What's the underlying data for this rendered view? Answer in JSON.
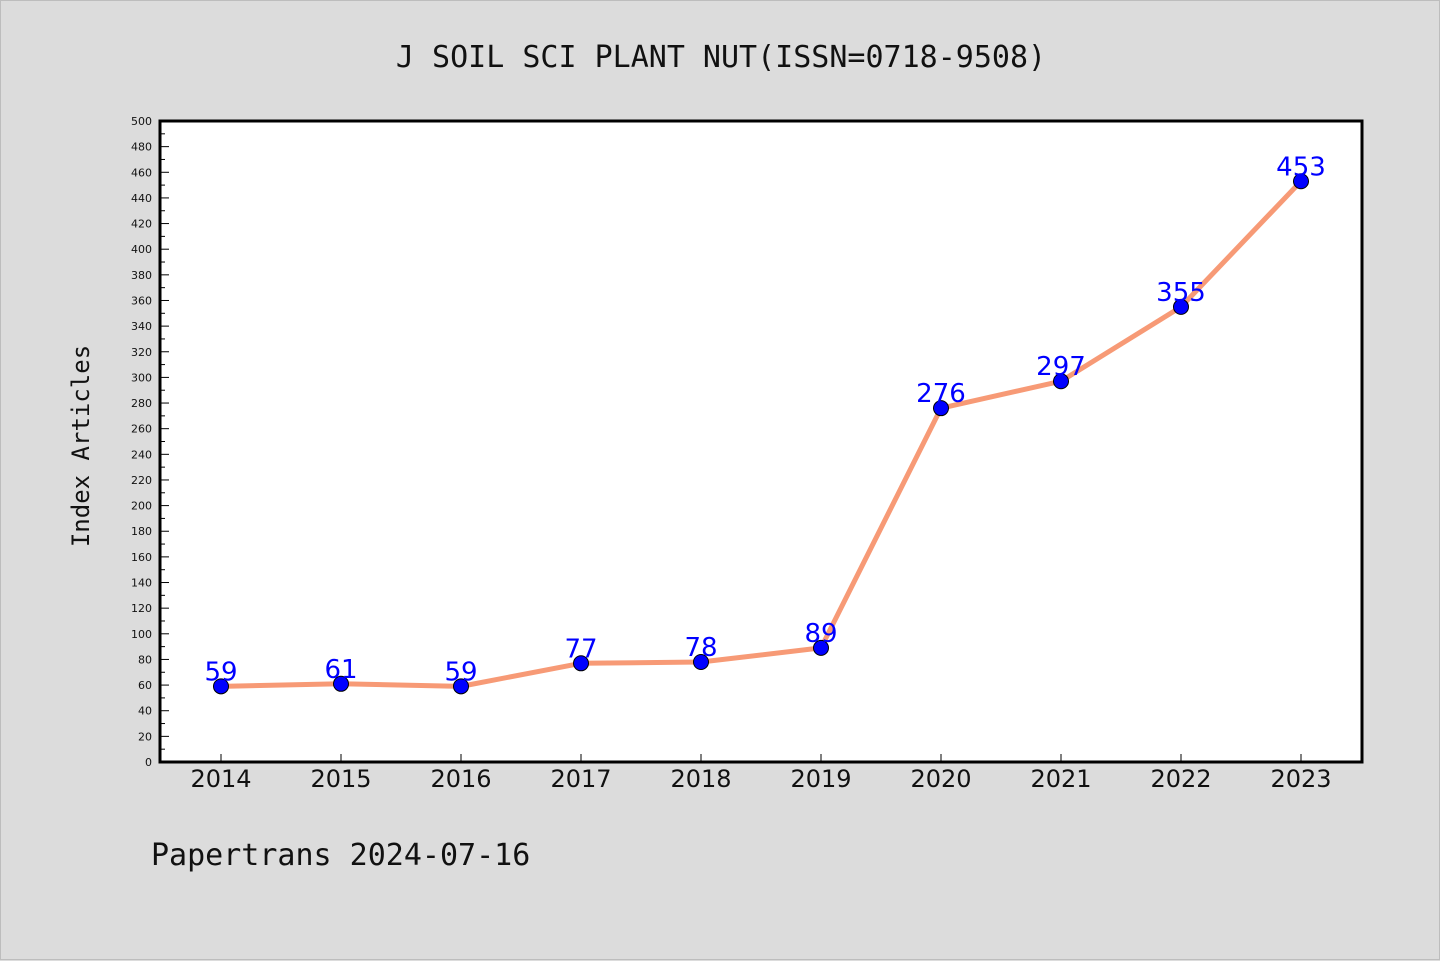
{
  "chart_data": {
    "type": "line",
    "title": "J SOIL SCI PLANT NUT(ISSN=0718-9508)",
    "xlabel": "",
    "ylabel": "Index Articles",
    "categories": [
      "2014",
      "2015",
      "2016",
      "2017",
      "2018",
      "2019",
      "2020",
      "2021",
      "2022",
      "2023"
    ],
    "series": [
      {
        "values": [
          59,
          61,
          59,
          77,
          78,
          89,
          276,
          297,
          355,
          453
        ]
      }
    ],
    "ylim": [
      0,
      500
    ],
    "ytick_step": 20,
    "grid": false,
    "line_color": "#f79a76",
    "marker_color": "#0000ff",
    "label_color": "#0000ff"
  },
  "footer": "Papertrans 2024-07-16"
}
